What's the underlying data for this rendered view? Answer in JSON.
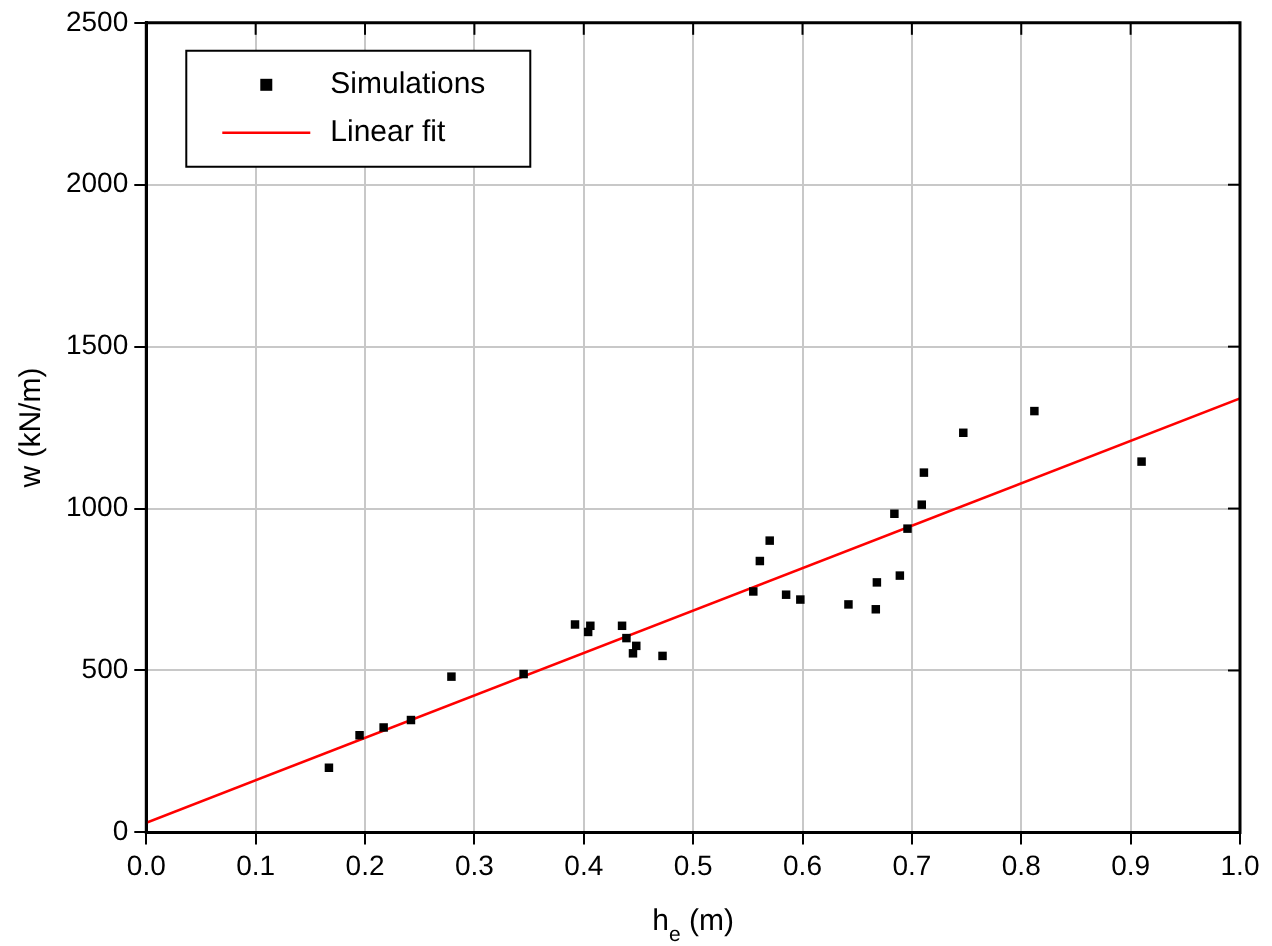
{
  "chart_data": {
    "type": "scatter",
    "xlabel": "h$_{e}$ (m)",
    "ylabel": "w (kN/m)",
    "xlim": [
      0,
      1
    ],
    "ylim": [
      0,
      2500
    ],
    "xticks": [
      {
        "value": 0,
        "label": "0.0"
      },
      {
        "value": 0.1,
        "label": "0.1"
      },
      {
        "value": 0.2,
        "label": "0.2"
      },
      {
        "value": 0.3,
        "label": "0.3"
      },
      {
        "value": 0.4,
        "label": "0.4"
      },
      {
        "value": 0.5,
        "label": "0.5"
      },
      {
        "value": 0.6,
        "label": "0.6"
      },
      {
        "value": 0.7,
        "label": "0.7"
      },
      {
        "value": 0.8,
        "label": "0.8"
      },
      {
        "value": 0.9,
        "label": "0.9"
      },
      {
        "value": 1,
        "label": "1.0"
      }
    ],
    "yticks": [
      0,
      500,
      1000,
      1500,
      2000,
      2500
    ],
    "grid": true,
    "legend": "top left",
    "series": [
      {
        "name": "Simulations",
        "marker": "square",
        "color": "#000000",
        "x": [
          0.167,
          0.195,
          0.217,
          0.242,
          0.279,
          0.345,
          0.392,
          0.404,
          0.406,
          0.435,
          0.439,
          0.448,
          0.445,
          0.472,
          0.555,
          0.561,
          0.57,
          0.585,
          0.598,
          0.642,
          0.667,
          0.668,
          0.689,
          0.684,
          0.696,
          0.709,
          0.711,
          0.747,
          0.812,
          0.91
        ],
        "values": [
          200,
          300,
          324,
          347,
          481,
          489,
          642,
          619,
          638,
          638,
          600,
          576,
          553,
          545,
          744,
          838,
          901,
          734,
          719,
          704,
          689,
          772,
          793,
          984,
          938,
          1012,
          1111,
          1234,
          1301,
          1145
        ]
      },
      {
        "name": "Linear fit",
        "type": "line",
        "marker": "none",
        "line_style": "solid",
        "color": "#ff0000",
        "x": [
          0,
          1
        ],
        "values": [
          30,
          1340
        ]
      }
    ]
  }
}
